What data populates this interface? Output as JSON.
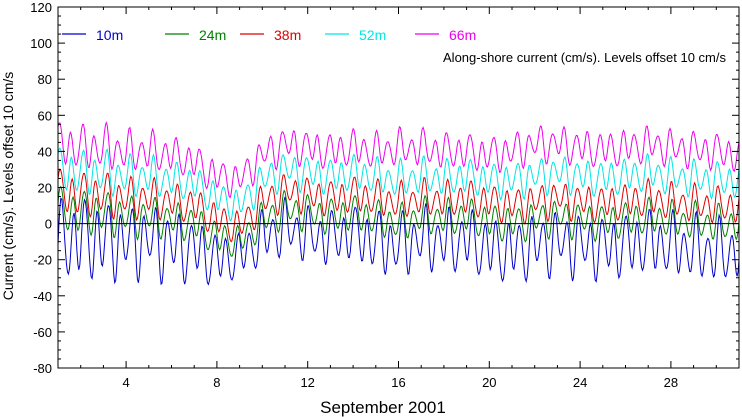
{
  "chart_data": {
    "type": "line",
    "title": "",
    "annotation": "Along-shore current (cm/s). Levels offset 10 cm/s",
    "xlabel": "September 2001",
    "ylabel": "Current (cm/s). Levels offset 10 cm/s",
    "xlim": [
      1,
      31
    ],
    "ylim": [
      -80,
      120
    ],
    "xticks": [
      4,
      8,
      12,
      16,
      20,
      24,
      28
    ],
    "yticks": [
      -80,
      -60,
      -40,
      -20,
      0,
      20,
      40,
      60,
      80,
      100,
      120
    ],
    "zero_line": true,
    "grid": false,
    "legend_position": "top-left",
    "series": [
      {
        "name": "10m",
        "color": "#0000cc",
        "x": [
          1,
          2,
          3,
          4,
          5,
          6,
          7,
          8,
          9,
          10,
          11,
          12,
          13,
          14,
          15,
          16,
          17,
          18,
          19,
          20,
          21,
          22,
          23,
          24,
          25,
          26,
          27,
          28,
          29,
          30,
          31
        ],
        "mean": [
          -10,
          -8,
          -9,
          -10,
          -9,
          -12,
          -14,
          -20,
          -18,
          -8,
          -2,
          -6,
          -8,
          -5,
          -10,
          -12,
          -8,
          -10,
          -9,
          -14,
          -15,
          -12,
          -10,
          -12,
          -13,
          -12,
          -10,
          -12,
          -14,
          -16,
          -15
        ],
        "amplitude": [
          18,
          18,
          18,
          16,
          16,
          16,
          14,
          12,
          10,
          12,
          12,
          12,
          12,
          12,
          14,
          14,
          14,
          14,
          14,
          14,
          14,
          14,
          14,
          14,
          14,
          14,
          14,
          14,
          14,
          14,
          14
        ]
      },
      {
        "name": "24m",
        "color": "#008000",
        "x": [
          1,
          2,
          3,
          4,
          5,
          6,
          7,
          8,
          9,
          10,
          11,
          12,
          13,
          14,
          15,
          16,
          17,
          18,
          19,
          20,
          21,
          22,
          23,
          24,
          25,
          26,
          27,
          28,
          29,
          30,
          31
        ],
        "mean": [
          8,
          6,
          6,
          4,
          4,
          2,
          0,
          -8,
          -10,
          2,
          8,
          6,
          4,
          6,
          3,
          0,
          4,
          3,
          4,
          1,
          0,
          2,
          4,
          2,
          1,
          2,
          4,
          2,
          1,
          0,
          0
        ],
        "amplitude": [
          10,
          10,
          10,
          9,
          9,
          8,
          8,
          8,
          7,
          8,
          8,
          8,
          8,
          8,
          8,
          8,
          8,
          8,
          8,
          8,
          8,
          8,
          8,
          8,
          8,
          8,
          8,
          8,
          8,
          8,
          8
        ]
      },
      {
        "name": "38m",
        "color": "#dd0000",
        "x": [
          1,
          2,
          3,
          4,
          5,
          6,
          7,
          8,
          9,
          10,
          11,
          12,
          13,
          14,
          15,
          16,
          17,
          18,
          19,
          20,
          21,
          22,
          23,
          24,
          25,
          26,
          27,
          28,
          29,
          30,
          31
        ],
        "mean": [
          18,
          16,
          16,
          14,
          14,
          12,
          10,
          2,
          -2,
          12,
          18,
          16,
          14,
          16,
          14,
          12,
          14,
          13,
          14,
          12,
          10,
          12,
          14,
          12,
          11,
          12,
          14,
          12,
          11,
          10,
          10
        ],
        "amplitude": [
          10,
          10,
          10,
          9,
          9,
          8,
          8,
          8,
          7,
          8,
          8,
          8,
          8,
          8,
          8,
          8,
          8,
          8,
          8,
          8,
          8,
          8,
          8,
          8,
          8,
          8,
          8,
          8,
          8,
          8,
          8
        ]
      },
      {
        "name": "52m",
        "color": "#00e5e5",
        "x": [
          1,
          2,
          3,
          4,
          5,
          6,
          7,
          8,
          9,
          10,
          11,
          12,
          13,
          14,
          15,
          16,
          17,
          18,
          19,
          20,
          21,
          22,
          23,
          24,
          25,
          26,
          27,
          28,
          29,
          30,
          31
        ],
        "mean": [
          30,
          28,
          28,
          26,
          26,
          24,
          22,
          14,
          10,
          24,
          30,
          28,
          26,
          28,
          26,
          24,
          26,
          25,
          26,
          24,
          24,
          26,
          28,
          26,
          25,
          26,
          28,
          26,
          25,
          24,
          24
        ],
        "amplitude": [
          10,
          10,
          10,
          9,
          9,
          8,
          8,
          8,
          7,
          8,
          8,
          8,
          8,
          8,
          8,
          8,
          8,
          8,
          8,
          8,
          8,
          8,
          8,
          8,
          8,
          8,
          8,
          8,
          8,
          8,
          8
        ]
      },
      {
        "name": "66m",
        "color": "#ee00ee",
        "x": [
          1,
          2,
          3,
          4,
          5,
          6,
          7,
          8,
          9,
          10,
          11,
          12,
          13,
          14,
          15,
          16,
          17,
          18,
          19,
          20,
          21,
          22,
          23,
          24,
          25,
          26,
          27,
          28,
          29,
          30,
          31
        ],
        "mean": [
          44,
          42,
          42,
          40,
          40,
          38,
          34,
          26,
          24,
          38,
          44,
          42,
          40,
          42,
          40,
          42,
          42,
          40,
          40,
          38,
          40,
          44,
          44,
          42,
          41,
          42,
          44,
          42,
          41,
          40,
          38
        ],
        "amplitude": [
          10,
          10,
          10,
          9,
          9,
          8,
          8,
          8,
          7,
          8,
          8,
          8,
          8,
          8,
          8,
          8,
          8,
          8,
          8,
          8,
          8,
          8,
          8,
          8,
          8,
          8,
          8,
          8,
          8,
          8,
          8
        ]
      }
    ]
  }
}
